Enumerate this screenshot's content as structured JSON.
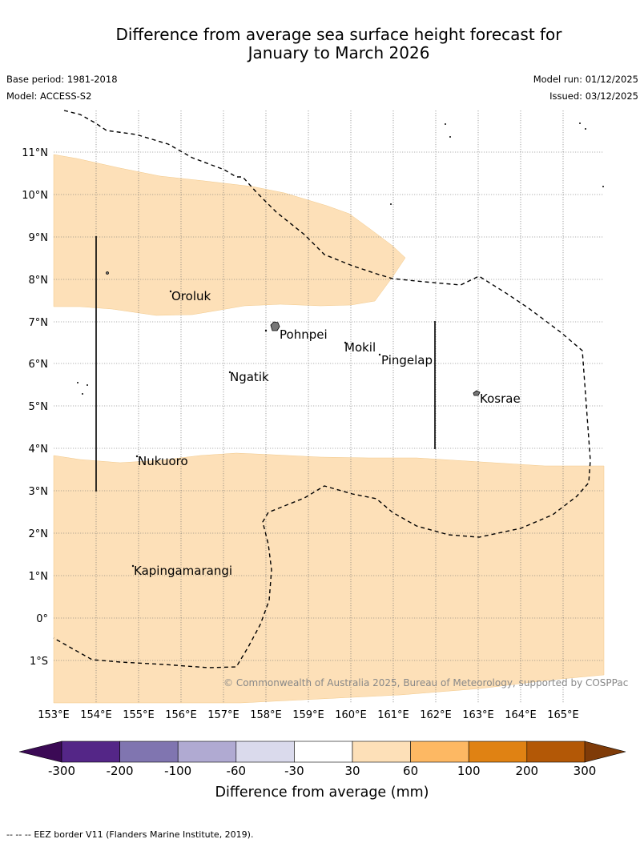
{
  "title": {
    "line1": "Difference from average sea surface height forecast for",
    "line2": "January to March 2026"
  },
  "meta": {
    "base_period": "Base period: 1981-2018",
    "model": "Model: ACCESS-S2",
    "model_run": "Model run: 01/12/2025",
    "issued": "Issued: 03/12/2025"
  },
  "map": {
    "lat_labels": [
      "11°N",
      "10°N",
      "9°N",
      "8°N",
      "7°N",
      "6°N",
      "5°N",
      "4°N",
      "3°N",
      "2°N",
      "1°N",
      "0°",
      "1°S"
    ],
    "lon_labels": [
      "153°E",
      "154°E",
      "155°E",
      "156°E",
      "157°E",
      "158°E",
      "159°E",
      "160°E",
      "161°E",
      "162°E",
      "163°E",
      "164°E",
      "165°E"
    ],
    "places": [
      {
        "name": "Oroluk"
      },
      {
        "name": "Pohnpei"
      },
      {
        "name": "Mokil"
      },
      {
        "name": "Pingelap"
      },
      {
        "name": "Ngatik"
      },
      {
        "name": "Kosrae"
      },
      {
        "name": "Nukuoro"
      },
      {
        "name": "Kapingamarangi"
      }
    ],
    "copyright": "© Commonwealth of Australia 2025, Bureau of Meteorology, supported by COSPPac",
    "anomaly_fill_color": "#fde0b8",
    "anomaly_category": "30 to 60"
  },
  "colorbar": {
    "ticks": [
      "-300",
      "-200",
      "-100",
      "-60",
      "-30",
      "30",
      "60",
      "100",
      "200",
      "300"
    ],
    "colors": [
      "#3b0a55",
      "#542687",
      "#8075b0",
      "#b0aad2",
      "#dadaec",
      "#ffffff",
      "#fde0b8",
      "#fdb863",
      "#e08213",
      "#b35806",
      "#7f3b08"
    ],
    "label": "Difference from average (mm)"
  },
  "footer": {
    "legend_symbol": "-- -- --",
    "text": "EEZ border V11 (Flanders Marine Institute, 2019)."
  }
}
